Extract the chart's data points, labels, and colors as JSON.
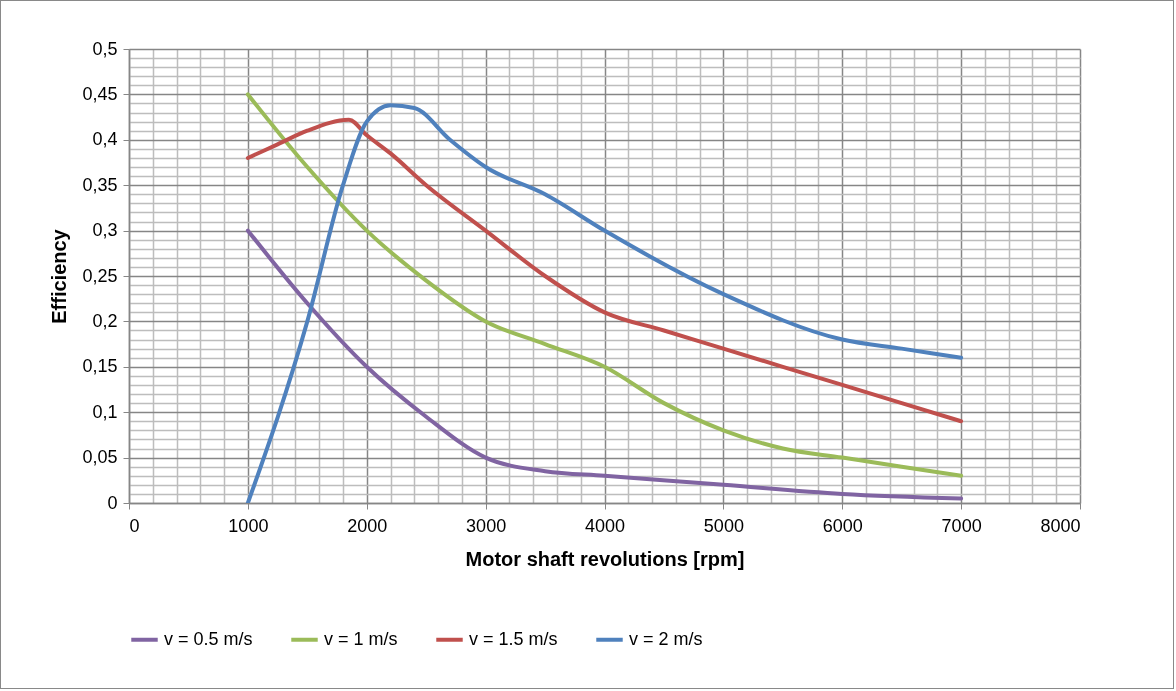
{
  "chart_data": {
    "type": "line",
    "xlabel": "Motor shaft revolutions [rpm]",
    "ylabel": "Efficiency",
    "xlim": [
      0,
      8000
    ],
    "xticks": [
      0,
      1000,
      2000,
      3000,
      4000,
      5000,
      6000,
      7000,
      8000
    ],
    "ylim": [
      0,
      0.5
    ],
    "yticks": [
      {
        "value": 0,
        "label": "0"
      },
      {
        "value": 0.05,
        "label": "0,05"
      },
      {
        "value": 0.1,
        "label": "0,1"
      },
      {
        "value": 0.15,
        "label": "0,15"
      },
      {
        "value": 0.2,
        "label": "0,2"
      },
      {
        "value": 0.25,
        "label": "0,25"
      },
      {
        "value": 0.3,
        "label": "0,3"
      },
      {
        "value": 0.35,
        "label": "0,35"
      },
      {
        "value": 0.4,
        "label": "0,4"
      },
      {
        "value": 0.45,
        "label": "0,45"
      },
      {
        "value": 0.5,
        "label": "0,5"
      }
    ],
    "grid": true,
    "legend": "bottom",
    "marker": "none",
    "line_style": "solid",
    "series": [
      {
        "name": "v = 0.5 m/s",
        "color": "#8064a2",
        "x": [
          1000,
          1500,
          2000,
          2500,
          3000,
          3500,
          4000,
          5000,
          6000,
          7000
        ],
        "values": [
          0.3,
          0.22,
          0.15,
          0.095,
          0.05,
          0.035,
          0.03,
          0.02,
          0.01,
          0.005
        ]
      },
      {
        "name": "v = 1 m/s",
        "color": "#9bbb59",
        "x": [
          1000,
          1500,
          2000,
          2500,
          3000,
          3500,
          4000,
          4500,
          5000,
          5500,
          6000,
          7000
        ],
        "values": [
          0.45,
          0.37,
          0.3,
          0.245,
          0.2,
          0.175,
          0.15,
          0.11,
          0.08,
          0.06,
          0.05,
          0.03
        ]
      },
      {
        "name": "v = 1.5 m/s",
        "color": "#c0504d",
        "x": [
          1000,
          1250,
          1500,
          1850,
          2000,
          2200,
          2500,
          3000,
          3500,
          4000,
          4500,
          5000,
          6000,
          7000
        ],
        "values": [
          0.38,
          0.395,
          0.41,
          0.422,
          0.405,
          0.385,
          0.35,
          0.3,
          0.25,
          0.21,
          0.19,
          0.17,
          0.13,
          0.09
        ]
      },
      {
        "name": "v = 2 m/s",
        "color": "#4f81bd",
        "x": [
          1000,
          1500,
          1800,
          2000,
          2200,
          2400,
          2700,
          3000,
          3500,
          4000,
          5000,
          6000,
          6500,
          7000
        ],
        "values": [
          0,
          0.2,
          0.35,
          0.42,
          0.438,
          0.435,
          0.4,
          0.37,
          0.34,
          0.3,
          0.23,
          0.18,
          0.17,
          0.16
        ]
      }
    ]
  }
}
